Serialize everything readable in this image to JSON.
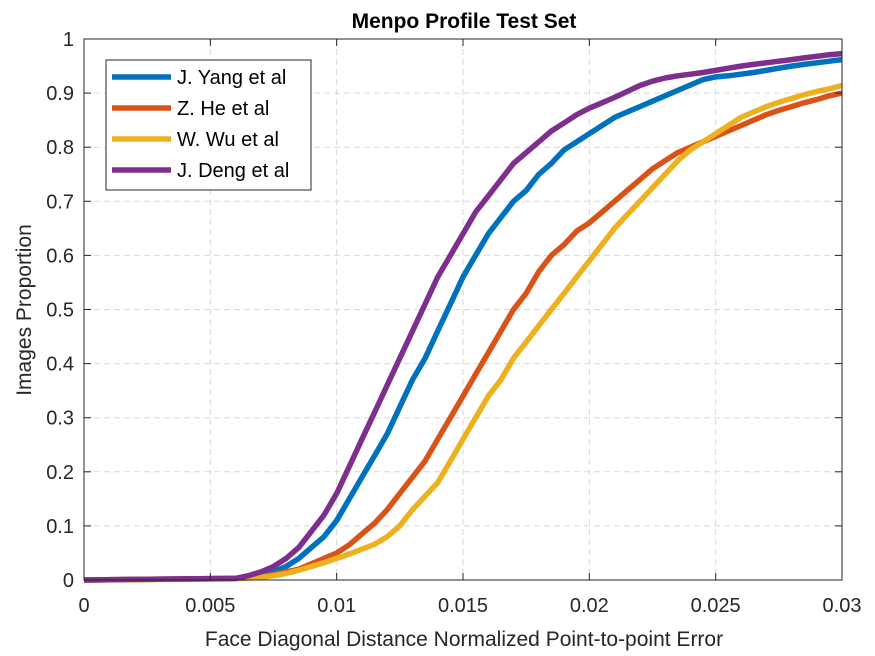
{
  "chart_data": {
    "type": "line",
    "title": "Menpo Profile Test Set",
    "xlabel": "Face Diagonal Distance Normalized Point-to-point Error",
    "ylabel": "Images Proportion",
    "xlim": [
      0,
      0.03
    ],
    "ylim": [
      0,
      1
    ],
    "xticks": [
      "0",
      "0.005",
      "0.01",
      "0.015",
      "0.02",
      "0.025",
      "0.03"
    ],
    "yticks": [
      "0",
      "0.1",
      "0.2",
      "0.3",
      "0.4",
      "0.5",
      "0.6",
      "0.7",
      "0.8",
      "0.9",
      "1"
    ],
    "grid": true,
    "legend_position": "top-left",
    "series": [
      {
        "name": "J. Yang et al",
        "color": "#0072BD",
        "x": [
          0,
          0.006,
          0.007,
          0.0075,
          0.008,
          0.0085,
          0.009,
          0.0095,
          0.01,
          0.0105,
          0.011,
          0.0115,
          0.012,
          0.0125,
          0.013,
          0.0135,
          0.014,
          0.0145,
          0.015,
          0.0155,
          0.016,
          0.0165,
          0.017,
          0.0175,
          0.018,
          0.0185,
          0.019,
          0.0195,
          0.02,
          0.0205,
          0.021,
          0.0215,
          0.022,
          0.0225,
          0.023,
          0.0235,
          0.024,
          0.0245,
          0.025,
          0.0255,
          0.026,
          0.0265,
          0.027,
          0.0275,
          0.028,
          0.0285,
          0.029,
          0.0295,
          0.03
        ],
        "y": [
          0,
          0.003,
          0.008,
          0.015,
          0.025,
          0.04,
          0.06,
          0.08,
          0.11,
          0.15,
          0.19,
          0.23,
          0.27,
          0.32,
          0.37,
          0.41,
          0.46,
          0.51,
          0.56,
          0.6,
          0.64,
          0.67,
          0.7,
          0.72,
          0.75,
          0.77,
          0.795,
          0.81,
          0.825,
          0.84,
          0.855,
          0.865,
          0.875,
          0.885,
          0.895,
          0.905,
          0.915,
          0.925,
          0.93,
          0.932,
          0.935,
          0.938,
          0.942,
          0.946,
          0.95,
          0.953,
          0.956,
          0.959,
          0.962
        ]
      },
      {
        "name": "Z. He et al",
        "color": "#D95319",
        "x": [
          0,
          0.006,
          0.007,
          0.0075,
          0.008,
          0.0085,
          0.009,
          0.0095,
          0.01,
          0.0105,
          0.011,
          0.0115,
          0.012,
          0.0125,
          0.013,
          0.0135,
          0.014,
          0.0145,
          0.015,
          0.0155,
          0.016,
          0.0165,
          0.017,
          0.0175,
          0.018,
          0.0185,
          0.019,
          0.0195,
          0.02,
          0.0205,
          0.021,
          0.0215,
          0.022,
          0.0225,
          0.023,
          0.0235,
          0.024,
          0.0245,
          0.025,
          0.0255,
          0.026,
          0.0265,
          0.027,
          0.0275,
          0.028,
          0.0285,
          0.029,
          0.0295,
          0.03
        ],
        "y": [
          0,
          0.003,
          0.006,
          0.01,
          0.015,
          0.02,
          0.03,
          0.04,
          0.05,
          0.065,
          0.085,
          0.105,
          0.13,
          0.16,
          0.19,
          0.22,
          0.26,
          0.3,
          0.34,
          0.38,
          0.42,
          0.46,
          0.5,
          0.53,
          0.57,
          0.6,
          0.62,
          0.645,
          0.66,
          0.68,
          0.7,
          0.72,
          0.74,
          0.76,
          0.775,
          0.79,
          0.8,
          0.81,
          0.82,
          0.83,
          0.84,
          0.85,
          0.86,
          0.868,
          0.875,
          0.882,
          0.888,
          0.895,
          0.9
        ]
      },
      {
        "name": "W. Wu et al",
        "color": "#EDB120",
        "x": [
          0,
          0.006,
          0.007,
          0.0075,
          0.008,
          0.0085,
          0.009,
          0.0095,
          0.01,
          0.0105,
          0.011,
          0.0115,
          0.012,
          0.0125,
          0.013,
          0.0135,
          0.014,
          0.0145,
          0.015,
          0.0155,
          0.016,
          0.0165,
          0.017,
          0.0175,
          0.018,
          0.0185,
          0.019,
          0.0195,
          0.02,
          0.0205,
          0.021,
          0.0215,
          0.022,
          0.0225,
          0.023,
          0.0235,
          0.024,
          0.0245,
          0.025,
          0.0255,
          0.026,
          0.0265,
          0.027,
          0.0275,
          0.028,
          0.0285,
          0.029,
          0.0295,
          0.03
        ],
        "y": [
          0,
          0.002,
          0.005,
          0.008,
          0.012,
          0.018,
          0.025,
          0.032,
          0.04,
          0.048,
          0.057,
          0.066,
          0.08,
          0.1,
          0.13,
          0.155,
          0.18,
          0.22,
          0.26,
          0.3,
          0.34,
          0.37,
          0.41,
          0.44,
          0.47,
          0.5,
          0.53,
          0.56,
          0.59,
          0.62,
          0.65,
          0.675,
          0.7,
          0.725,
          0.75,
          0.775,
          0.795,
          0.81,
          0.825,
          0.84,
          0.855,
          0.865,
          0.875,
          0.883,
          0.89,
          0.897,
          0.903,
          0.908,
          0.914
        ]
      },
      {
        "name": "J. Deng et al",
        "color": "#7E2F8E",
        "x": [
          0,
          0.006,
          0.0065,
          0.007,
          0.0075,
          0.008,
          0.0085,
          0.009,
          0.0095,
          0.01,
          0.0105,
          0.011,
          0.0115,
          0.012,
          0.0125,
          0.013,
          0.0135,
          0.014,
          0.0145,
          0.015,
          0.0155,
          0.016,
          0.0165,
          0.017,
          0.0175,
          0.018,
          0.0185,
          0.019,
          0.0195,
          0.02,
          0.0205,
          0.021,
          0.0215,
          0.022,
          0.0225,
          0.023,
          0.0235,
          0.024,
          0.0245,
          0.025,
          0.0255,
          0.026,
          0.0265,
          0.027,
          0.0275,
          0.028,
          0.0285,
          0.029,
          0.0295,
          0.03
        ],
        "y": [
          0,
          0.003,
          0.008,
          0.015,
          0.025,
          0.04,
          0.06,
          0.09,
          0.12,
          0.16,
          0.21,
          0.26,
          0.31,
          0.36,
          0.41,
          0.46,
          0.51,
          0.56,
          0.6,
          0.64,
          0.68,
          0.71,
          0.74,
          0.77,
          0.79,
          0.81,
          0.83,
          0.845,
          0.86,
          0.872,
          0.882,
          0.892,
          0.903,
          0.914,
          0.922,
          0.928,
          0.932,
          0.935,
          0.938,
          0.942,
          0.946,
          0.95,
          0.953,
          0.956,
          0.959,
          0.962,
          0.965,
          0.968,
          0.971,
          0.973
        ]
      }
    ]
  }
}
